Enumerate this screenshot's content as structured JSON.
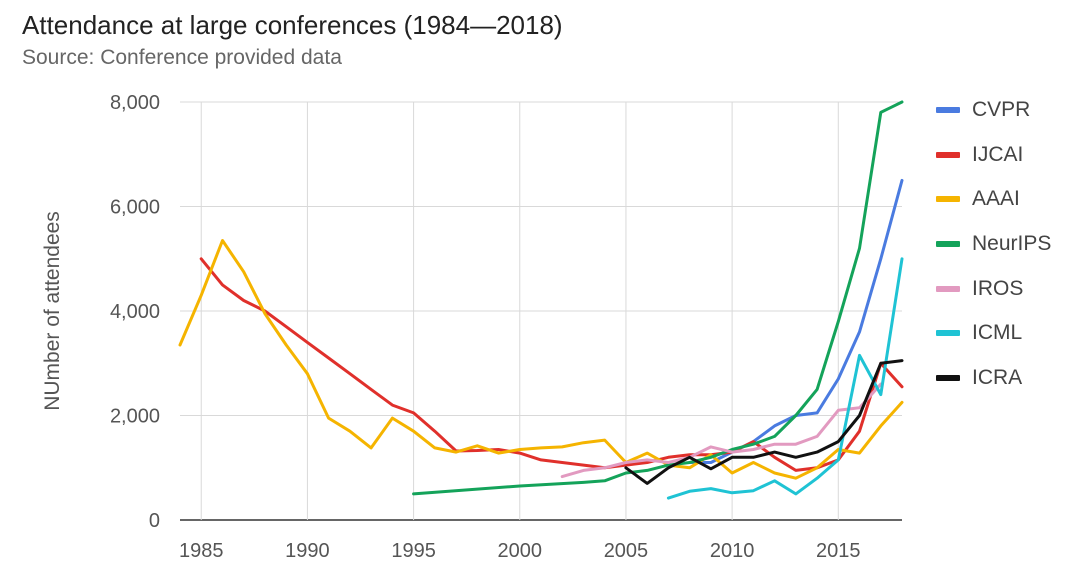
{
  "chart_data": {
    "type": "line",
    "title": "Attendance at large conferences (1984—2018)",
    "subtitle": "Source: Conference provided data",
    "xlabel": "",
    "ylabel": "NUmber of attendees",
    "xlim": [
      1984,
      2018
    ],
    "ylim": [
      0,
      8000
    ],
    "x_ticks": [
      1985,
      1990,
      1995,
      2000,
      2005,
      2010,
      2015
    ],
    "x_tick_labels": [
      "1985",
      "1990",
      "1995",
      "2000",
      "2005",
      "2010",
      "2015"
    ],
    "y_ticks": [
      0,
      2000,
      4000,
      6000,
      8000
    ],
    "y_tick_labels": [
      "0",
      "2,000",
      "4,000",
      "6,000",
      "8,000"
    ],
    "grid": true,
    "legend_position": "right",
    "series": [
      {
        "name": "CVPR",
        "color": "#4a7be0",
        "points": [
          [
            2008,
            1100
          ],
          [
            2009,
            1100
          ],
          [
            2010,
            1300
          ],
          [
            2011,
            1500
          ],
          [
            2012,
            1800
          ],
          [
            2013,
            2000
          ],
          [
            2014,
            2050
          ],
          [
            2015,
            2700
          ],
          [
            2016,
            3600
          ],
          [
            2017,
            5000
          ],
          [
            2018,
            6500
          ]
        ]
      },
      {
        "name": "IJCAI",
        "color": "#e0302b",
        "points": [
          [
            1985,
            5000
          ],
          [
            1986,
            4500
          ],
          [
            1987,
            4200
          ],
          [
            1988,
            4000
          ],
          [
            1989,
            3700
          ],
          [
            1990,
            3400
          ],
          [
            1991,
            3100
          ],
          [
            1992,
            2800
          ],
          [
            1993,
            2500
          ],
          [
            1994,
            2200
          ],
          [
            1995,
            2050
          ],
          [
            1996,
            1700
          ],
          [
            1997,
            1320
          ],
          [
            1998,
            1330
          ],
          [
            1999,
            1350
          ],
          [
            2000,
            1280
          ],
          [
            2001,
            1150
          ],
          [
            2002,
            1100
          ],
          [
            2003,
            1050
          ],
          [
            2004,
            1000
          ],
          [
            2005,
            1050
          ],
          [
            2006,
            1100
          ],
          [
            2007,
            1200
          ],
          [
            2008,
            1250
          ],
          [
            2009,
            1250
          ],
          [
            2010,
            1300
          ],
          [
            2011,
            1500
          ],
          [
            2012,
            1200
          ],
          [
            2013,
            950
          ],
          [
            2014,
            1000
          ],
          [
            2015,
            1150
          ],
          [
            2016,
            1700
          ],
          [
            2017,
            3000
          ],
          [
            2018,
            2550
          ]
        ]
      },
      {
        "name": "AAAI",
        "color": "#f5b400",
        "points": [
          [
            1984,
            3350
          ],
          [
            1985,
            4300
          ],
          [
            1986,
            5350
          ],
          [
            1987,
            4750
          ],
          [
            1988,
            3950
          ],
          [
            1989,
            3350
          ],
          [
            1990,
            2800
          ],
          [
            1991,
            1950
          ],
          [
            1992,
            1700
          ],
          [
            1993,
            1380
          ],
          [
            1994,
            1950
          ],
          [
            1995,
            1700
          ],
          [
            1996,
            1380
          ],
          [
            1997,
            1300
          ],
          [
            1998,
            1420
          ],
          [
            1999,
            1280
          ],
          [
            2000,
            1350
          ],
          [
            2001,
            1380
          ],
          [
            2002,
            1400
          ],
          [
            2003,
            1480
          ],
          [
            2004,
            1530
          ],
          [
            2005,
            1100
          ],
          [
            2006,
            1280
          ],
          [
            2007,
            1050
          ],
          [
            2008,
            1000
          ],
          [
            2009,
            1250
          ],
          [
            2010,
            900
          ],
          [
            2011,
            1100
          ],
          [
            2012,
            900
          ],
          [
            2013,
            800
          ],
          [
            2014,
            1000
          ],
          [
            2015,
            1350
          ],
          [
            2016,
            1280
          ],
          [
            2017,
            1800
          ],
          [
            2018,
            2250
          ]
        ]
      },
      {
        "name": "NeurIPS",
        "color": "#14a35a",
        "points": [
          [
            1995,
            500
          ],
          [
            2000,
            650
          ],
          [
            2003,
            720
          ],
          [
            2004,
            750
          ],
          [
            2005,
            900
          ],
          [
            2006,
            950
          ],
          [
            2007,
            1050
          ],
          [
            2008,
            1100
          ],
          [
            2009,
            1200
          ],
          [
            2010,
            1350
          ],
          [
            2011,
            1450
          ],
          [
            2012,
            1600
          ],
          [
            2013,
            2000
          ],
          [
            2014,
            2500
          ],
          [
            2015,
            3800
          ],
          [
            2016,
            5200
          ],
          [
            2017,
            7800
          ],
          [
            2018,
            8000
          ]
        ]
      },
      {
        "name": "IROS",
        "color": "#e29ac0",
        "points": [
          [
            2002,
            830
          ],
          [
            2003,
            950
          ],
          [
            2004,
            1000
          ],
          [
            2005,
            1100
          ],
          [
            2006,
            1150
          ],
          [
            2007,
            1100
          ],
          [
            2008,
            1200
          ],
          [
            2009,
            1400
          ],
          [
            2010,
            1300
          ],
          [
            2011,
            1350
          ],
          [
            2012,
            1450
          ],
          [
            2013,
            1450
          ],
          [
            2014,
            1600
          ],
          [
            2015,
            2100
          ],
          [
            2016,
            2150
          ],
          [
            2017,
            2600
          ]
        ]
      },
      {
        "name": "ICML",
        "color": "#1fc3d4",
        "points": [
          [
            2007,
            420
          ],
          [
            2008,
            550
          ],
          [
            2009,
            600
          ],
          [
            2010,
            520
          ],
          [
            2011,
            560
          ],
          [
            2012,
            750
          ],
          [
            2013,
            500
          ],
          [
            2014,
            800
          ],
          [
            2015,
            1150
          ],
          [
            2016,
            3150
          ],
          [
            2017,
            2400
          ],
          [
            2018,
            5000
          ]
        ]
      },
      {
        "name": "ICRA",
        "color": "#111111",
        "points": [
          [
            2005,
            1000
          ],
          [
            2006,
            700
          ],
          [
            2007,
            1000
          ],
          [
            2008,
            1200
          ],
          [
            2009,
            980
          ],
          [
            2010,
            1200
          ],
          [
            2011,
            1200
          ],
          [
            2012,
            1300
          ],
          [
            2013,
            1200
          ],
          [
            2014,
            1300
          ],
          [
            2015,
            1500
          ],
          [
            2016,
            2000
          ],
          [
            2017,
            3000
          ],
          [
            2018,
            3050
          ]
        ]
      }
    ]
  }
}
